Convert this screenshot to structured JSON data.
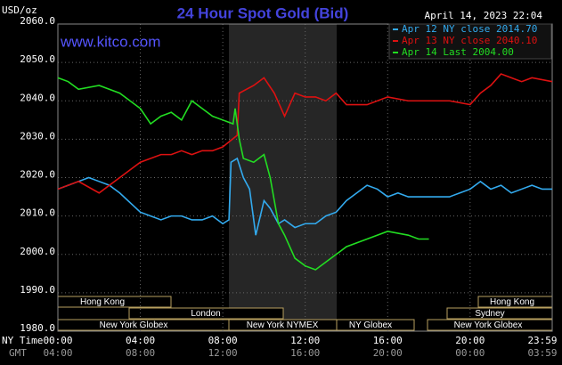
{
  "chart_data": {
    "type": "line",
    "title": "24 Hour Spot Gold (Bid)",
    "unit_label": "USD/oz",
    "watermark": "www.kitco.com",
    "timestamp": "April 14, 2023 22:04",
    "x_axis_label": "NY Time",
    "x2_axis_label": "GMT",
    "xlim": [
      0,
      23.983
    ],
    "xticks": [
      {
        "value": 0,
        "label": "00:00"
      },
      {
        "value": 4,
        "label": "04:00"
      },
      {
        "value": 8,
        "label": "08:00"
      },
      {
        "value": 12,
        "label": "12:00"
      },
      {
        "value": 16,
        "label": "16:00"
      },
      {
        "value": 20,
        "label": "20:00"
      },
      {
        "value": 23.983,
        "label": "23:59"
      }
    ],
    "x2ticks": [
      {
        "value": 0,
        "label": "04:00"
      },
      {
        "value": 4,
        "label": "08:00"
      },
      {
        "value": 8,
        "label": "12:00"
      },
      {
        "value": 12,
        "label": "16:00"
      },
      {
        "value": 16,
        "label": "20:00"
      },
      {
        "value": 20,
        "label": "00:00"
      },
      {
        "value": 23.983,
        "label": "03:59"
      }
    ],
    "ylim": [
      1980,
      2060
    ],
    "yticks": [
      {
        "value": 1980,
        "label": "1980.0"
      },
      {
        "value": 1990,
        "label": "1990.0"
      },
      {
        "value": 2000,
        "label": "2000.0"
      },
      {
        "value": 2010,
        "label": "2010.0"
      },
      {
        "value": 2020,
        "label": "2020.0"
      },
      {
        "value": 2030,
        "label": "2030.0"
      },
      {
        "value": 2040,
        "label": "2040.0"
      },
      {
        "value": 2050,
        "label": "2050.0"
      },
      {
        "value": 2060,
        "label": "2060.0"
      }
    ],
    "grid": true,
    "legend": "top-right",
    "sessions": [
      "Hong Kong",
      "London",
      "New York Globex",
      "New York NYMEX",
      "NY Globex",
      "Hong Kong",
      "Sydney",
      "New York Globex"
    ],
    "series": [
      {
        "name": "Apr 12 NY close 2014.70",
        "color": "#33aaee",
        "x": [
          0,
          0.5,
          1,
          1.5,
          2,
          2.5,
          3,
          4,
          4.5,
          5,
          5.5,
          6,
          6.5,
          7,
          7.5,
          8,
          8.3,
          8.4,
          8.7,
          9,
          9.3,
          9.6,
          10,
          10.3,
          10.7,
          11,
          11.5,
          12,
          12.5,
          13,
          13.5,
          14,
          14.5,
          15,
          15.5,
          16,
          16.5,
          17,
          18,
          19,
          19.5,
          20,
          20.5,
          21,
          21.5,
          22,
          22.5,
          23,
          23.5,
          23.983
        ],
        "values": [
          2017,
          2018,
          2019,
          2020,
          2019,
          2018,
          2016,
          2011,
          2010,
          2009,
          2010,
          2010,
          2009,
          2009,
          2010,
          2008,
          2009,
          2024,
          2025,
          2020,
          2017,
          2005,
          2014,
          2012,
          2008,
          2009,
          2007,
          2008,
          2008,
          2010,
          2011,
          2014,
          2016,
          2018,
          2017,
          2015,
          2016,
          2015,
          2015,
          2015,
          2016,
          2017,
          2019,
          2017,
          2018,
          2016,
          2017,
          2018,
          2017,
          2017
        ]
      },
      {
        "name": "Apr 13 NY close 2040.10",
        "color": "#dd1111",
        "x": [
          0,
          1,
          2,
          3,
          4,
          5,
          5.5,
          6,
          6.5,
          7,
          7.5,
          8,
          8.7,
          8.8,
          9.5,
          10,
          10.5,
          11,
          11.5,
          12,
          12.5,
          13,
          13.5,
          14,
          15,
          16,
          17,
          18,
          19,
          20,
          20.5,
          21,
          21.5,
          22,
          22.5,
          23,
          23.983
        ],
        "values": [
          2017,
          2019,
          2016,
          2020,
          2024,
          2026,
          2026,
          2027,
          2026,
          2027,
          2027,
          2028,
          2031,
          2042,
          2044,
          2046,
          2042,
          2036,
          2042,
          2041,
          2041,
          2040,
          2042,
          2039,
          2039,
          2041,
          2040,
          2040,
          2040,
          2039,
          2042,
          2044,
          2047,
          2046,
          2045,
          2046,
          2045
        ]
      },
      {
        "name": "Apr 14 Last 2004.00",
        "color": "#22dd22",
        "x": [
          0,
          0.5,
          1,
          2,
          3,
          4,
          4.5,
          5,
          5.5,
          6,
          6.5,
          7,
          7.5,
          8,
          8.5,
          8.6,
          8.8,
          9,
          9.5,
          10,
          10.3,
          10.7,
          11,
          11.5,
          12,
          12.5,
          13,
          13.5,
          14,
          15,
          16,
          17,
          17.5,
          18
        ],
        "values": [
          2046,
          2045,
          2043,
          2044,
          2042,
          2038,
          2034,
          2036,
          2037,
          2035,
          2040,
          2038,
          2036,
          2035,
          2034,
          2038,
          2030,
          2025,
          2024,
          2026,
          2020,
          2008,
          2005,
          1999,
          1997,
          1996,
          1998,
          2000,
          2002,
          2004,
          2006,
          2005,
          2004,
          2004
        ]
      }
    ]
  }
}
